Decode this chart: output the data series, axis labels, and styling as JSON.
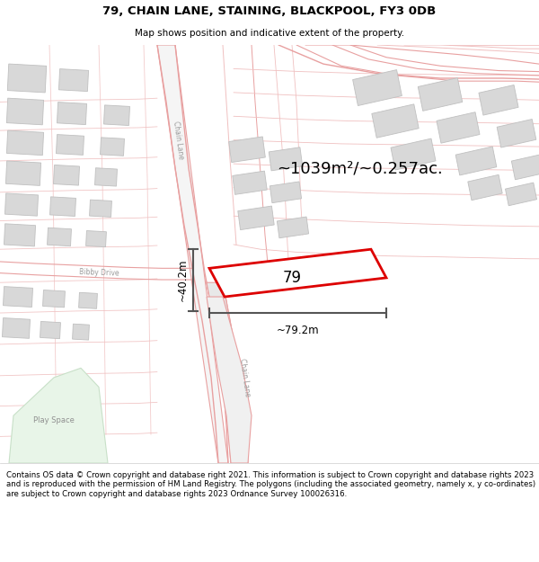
{
  "title_line1": "79, CHAIN LANE, STAINING, BLACKPOOL, FY3 0DB",
  "title_line2": "Map shows position and indicative extent of the property.",
  "footer_text": "Contains OS data © Crown copyright and database right 2021. This information is subject to Crown copyright and database rights 2023 and is reproduced with the permission of HM Land Registry. The polygons (including the associated geometry, namely x, y co-ordinates) are subject to Crown copyright and database rights 2023 Ordnance Survey 100026316.",
  "plot_label": "79",
  "area_text": "~1039m²/~0.257ac.",
  "width_text": "~79.2m",
  "height_text": "~40.2m",
  "road_color": "#f0a0a0",
  "building_color": "#d8d8d8",
  "building_edge": "#c0c0c0",
  "map_bg": "#ffffff",
  "prop_border": "#dd0000",
  "dim_color": "#555555",
  "text_color": "#404040",
  "label_color": "#555555"
}
